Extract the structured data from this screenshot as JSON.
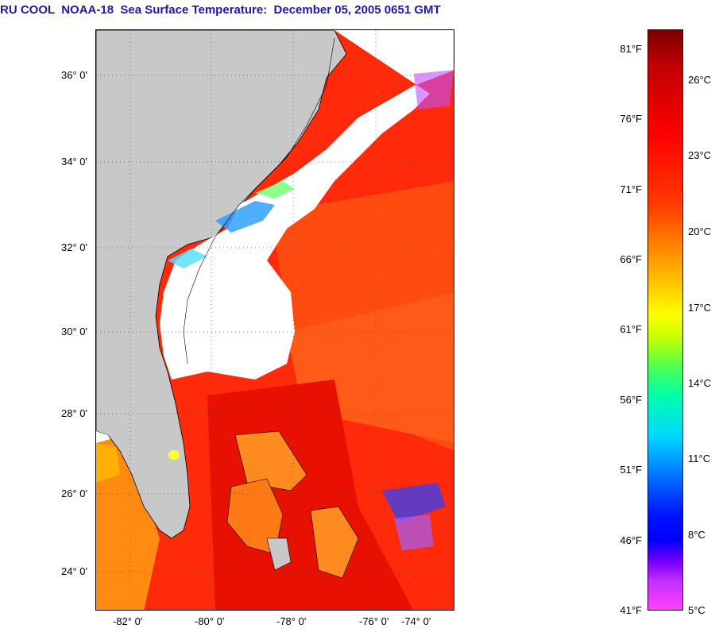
{
  "title": "RU COOL  NOAA-18  Sea Surface Temperature:  December 05, 2005 0651 GMT",
  "lat_labels": [
    {
      "text": "36° 0'",
      "deg": 36
    },
    {
      "text": "34° 0'",
      "deg": 34
    },
    {
      "text": "32° 0'",
      "deg": 32
    },
    {
      "text": "30° 0'",
      "deg": 30
    },
    {
      "text": "28° 0'",
      "deg": 28
    },
    {
      "text": "26° 0'",
      "deg": 26
    },
    {
      "text": "24° 0'",
      "deg": 24
    }
  ],
  "lon_labels": [
    {
      "text": "-82° 0'",
      "deg": -82
    },
    {
      "text": "-80° 0'",
      "deg": -80
    },
    {
      "text": "-78° 0'",
      "deg": -78
    },
    {
      "text": "-76° 0'",
      "deg": -76
    },
    {
      "text": "-74° 0'",
      "deg": -74
    }
  ],
  "colorbar_f": [
    "81°F",
    "76°F",
    "71°F",
    "66°F",
    "61°F",
    "56°F",
    "51°F",
    "46°F",
    "41°F"
  ],
  "colorbar_c": [
    "26°C",
    "23°C",
    "20°C",
    "17°C",
    "14°C",
    "11°C",
    "8°C",
    "5°C"
  ],
  "colors": {
    "land": "#c8c8c8",
    "cloud": "#ffffff",
    "warm_water": "#ff3010",
    "title": "#1a1aa6"
  }
}
